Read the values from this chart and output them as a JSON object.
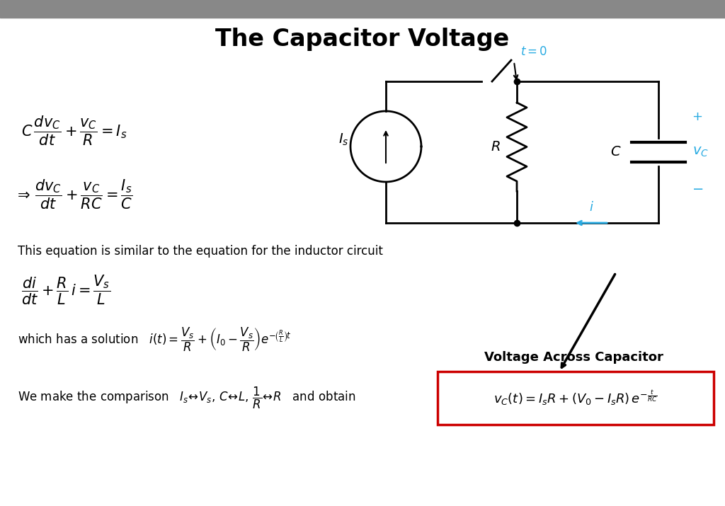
{
  "title": "The Capacitor Voltage",
  "title_fontsize": 24,
  "bg_color": "#ffffff",
  "header_color": "#888888",
  "text_color": "#000000",
  "cyan_color": "#29ABE2",
  "red_color": "#cc0000",
  "label_vac": "Voltage Across Capacitor",
  "fig_w": 10.24,
  "fig_h": 7.15,
  "dpi": 100
}
